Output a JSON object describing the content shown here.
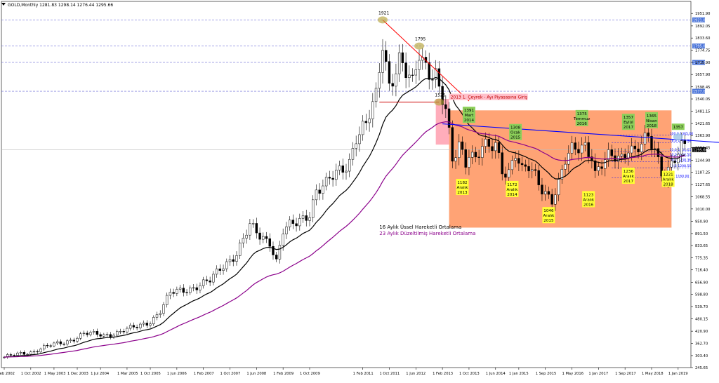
{
  "header": {
    "symbol_line": "GOLD,Monthly  1281.83 1298.14 1276.44 1295.66"
  },
  "chart_data": {
    "type": "candlestick",
    "title": "GOLD,Monthly",
    "y_min": 245.65,
    "y_max": 2010,
    "x_labels": [
      {
        "t": "1 Feb 2002",
        "i": 0
      },
      {
        "t": "1 Oct 2002",
        "i": 8
      },
      {
        "t": "1 May 2003",
        "i": 15
      },
      {
        "t": "1 Dec 2003",
        "i": 22
      },
      {
        "t": "1 Jul 2004",
        "i": 29
      },
      {
        "t": "1 Mar 2005",
        "i": 37
      },
      {
        "t": "1 Oct 2005",
        "i": 44
      },
      {
        "t": "1 Jun 2006",
        "i": 52
      },
      {
        "t": "1 Feb 2007",
        "i": 60
      },
      {
        "t": "1 Oct 2007",
        "i": 68
      },
      {
        "t": "1 Jun 2008",
        "i": 76
      },
      {
        "t": "1 Feb 2009",
        "i": 84
      },
      {
        "t": "1 Oct 2009",
        "i": 92
      },
      {
        "t": "1 Feb 2011",
        "i": 108
      },
      {
        "t": "1 Oct 2011",
        "i": 116
      },
      {
        "t": "1 Jun 2012",
        "i": 124
      },
      {
        "t": "1 Feb 2013",
        "i": 132
      },
      {
        "t": "1 Oct 2013",
        "i": 140
      },
      {
        "t": "1 Jun 2014",
        "i": 148
      },
      {
        "t": "1 Jan 2015",
        "i": 155
      },
      {
        "t": "1 Sep 2015",
        "i": 163
      },
      {
        "t": "1 May 2016",
        "i": 171
      },
      {
        "t": "1 Jan 2017",
        "i": 179
      },
      {
        "t": "1 Sep 2017",
        "i": 187
      },
      {
        "t": "1 May 2018",
        "i": 195
      },
      {
        "t": "1 Jan 2019",
        "i": 203
      }
    ],
    "y_ticks": [
      "1951.90",
      "1892.05",
      "1833.60",
      "1774.75",
      "1715.90",
      "1657.90",
      "1598.45",
      "1540.05",
      "1481.15",
      "1421.65",
      "1363.90",
      "1304.45",
      "1244.90",
      "1187.25",
      "1127.65",
      "1068.55",
      "1010.00",
      "950.90",
      "891.50",
      "833.65",
      "775.35",
      "716.40",
      "656.90",
      "598.80",
      "539.70",
      "480.15",
      "420.90",
      "362.70",
      "303.40",
      "245.65"
    ],
    "y_tick_values": [
      1951.9,
      1892.05,
      1833.6,
      1774.75,
      1715.9,
      1657.9,
      1598.45,
      1540.05,
      1481.15,
      1421.65,
      1363.9,
      1304.45,
      1244.9,
      1187.25,
      1127.65,
      1068.55,
      1010.0,
      950.9,
      891.5,
      833.65,
      775.35,
      716.4,
      656.9,
      598.8,
      539.7,
      480.15,
      420.9,
      362.7,
      303.4,
      245.65
    ],
    "resistance_levels": [
      {
        "value": 1921,
        "label": "1921.00"
      },
      {
        "value": 1795,
        "label": "1795.00"
      },
      {
        "value": 1716,
        "label": "1716.00"
      },
      {
        "value": 1577,
        "label": "1577.00"
      }
    ],
    "current_price": {
      "value": 1295.66,
      "label": "1295.66"
    },
    "key_points": [
      {
        "label": "1921",
        "date_index": 114,
        "price": 1921
      },
      {
        "label": "1795",
        "date_index": 125,
        "price": 1795
      },
      {
        "label": "1525",
        "date_index": 131,
        "price": 1525
      }
    ],
    "red_trendline": {
      "from": {
        "i": 114,
        "p": 1921
      },
      "to": {
        "i": 140,
        "p": 1530
      },
      "label": "2013 1. Çeyrek - Ayı Piyasasına Giriş"
    },
    "support_line": {
      "from_i": 113,
      "to_i": 131,
      "p": 1525
    },
    "blue_trendline": {
      "from": {
        "i": 132,
        "p": 1420
      },
      "to": {
        "i": 216,
        "p": 1330
      }
    },
    "box": {
      "from_i": 134,
      "to_i": 201,
      "top": 1485,
      "bottom": 920
    },
    "fib_levels": [
      {
        "label": "100.0 1365.00",
        "value": 1365,
        "color": "#0000ff"
      },
      {
        "label": "78.6 1329.92",
        "value": 1329.92,
        "color": "#0000ff"
      },
      {
        "label": "61.8 1286.63",
        "value": 1286.63,
        "color": "#0000ff"
      },
      {
        "label": "50.0 1262.50",
        "value": 1262.5,
        "color": "#0000ff"
      },
      {
        "label": "38.2 1238.36",
        "value": 1238.36,
        "color": "#0000ff"
      },
      {
        "label": "23.6 1208.50",
        "value": 1208.5,
        "color": "#0000ff"
      },
      {
        "label": "0.0 1160.00",
        "value": 1160,
        "color": "#0000ff"
      }
    ],
    "annotations_green": [
      {
        "text": [
          "1391",
          "Mart",
          "2014"
        ],
        "i": 140,
        "p": 1391,
        "pos": "above"
      },
      {
        "text": [
          "1308",
          "Ocak",
          "2015"
        ],
        "i": 154,
        "p": 1308,
        "pos": "above"
      },
      {
        "text": [
          "1375",
          "Temmuz",
          "2016"
        ],
        "i": 174,
        "p": 1375,
        "pos": "above"
      },
      {
        "text": [
          "1357",
          "Eylül",
          "2017"
        ],
        "i": 188,
        "p": 1357,
        "pos": "above"
      },
      {
        "text": [
          "1365",
          "Nisan",
          "2018"
        ],
        "i": 195,
        "p": 1365,
        "pos": "above"
      },
      {
        "text": [
          "1357"
        ],
        "i": 203,
        "p": 1357,
        "pos": "above"
      }
    ],
    "annotations_yellow": [
      {
        "text": [
          "1182",
          "Aralık",
          "2013"
        ],
        "i": 138,
        "p": 1182
      },
      {
        "text": [
          "1172",
          "Aralık",
          "2014"
        ],
        "i": 153,
        "p": 1172
      },
      {
        "text": [
          "1046",
          "Aralık",
          "2015"
        ],
        "i": 164,
        "p": 1046
      },
      {
        "text": [
          "1123",
          "Aralık",
          "2016"
        ],
        "i": 176,
        "p": 1123
      },
      {
        "text": [
          "1236",
          "Aralık",
          "2017"
        ],
        "i": 188,
        "p": 1236
      },
      {
        "text": [
          "1221",
          "Aralık",
          "2018"
        ],
        "i": 200,
        "p": 1221
      }
    ],
    "legend": [
      {
        "label": "16 Aylık Üssel Hareketli Ortalama",
        "color": "#000000"
      },
      {
        "label": "23 Aylık Düzeltilmiş Hareketli Ortalama",
        "color": "#8b008b"
      }
    ],
    "candle_count": 206,
    "closes_anchor": [
      [
        0,
        296
      ],
      [
        8,
        320
      ],
      [
        12,
        345
      ],
      [
        18,
        365
      ],
      [
        24,
        410
      ],
      [
        30,
        400
      ],
      [
        36,
        425
      ],
      [
        40,
        440
      ],
      [
        44,
        470
      ],
      [
        47,
        520
      ],
      [
        50,
        600
      ],
      [
        54,
        620
      ],
      [
        58,
        640
      ],
      [
        62,
        660
      ],
      [
        66,
        740
      ],
      [
        70,
        800
      ],
      [
        74,
        920
      ],
      [
        77,
        880
      ],
      [
        80,
        860
      ],
      [
        82,
        760
      ],
      [
        84,
        900
      ],
      [
        88,
        940
      ],
      [
        92,
        1000
      ],
      [
        94,
        1100
      ],
      [
        97,
        1120
      ],
      [
        100,
        1180
      ],
      [
        104,
        1250
      ],
      [
        106,
        1360
      ],
      [
        109,
        1400
      ],
      [
        112,
        1550
      ],
      [
        114,
        1830
      ],
      [
        116,
        1620
      ],
      [
        119,
        1720
      ],
      [
        121,
        1650
      ],
      [
        123,
        1600
      ],
      [
        125,
        1770
      ],
      [
        128,
        1690
      ],
      [
        130,
        1660
      ],
      [
        131,
        1580
      ],
      [
        133,
        1470
      ],
      [
        135,
        1230
      ],
      [
        137,
        1330
      ],
      [
        139,
        1250
      ],
      [
        140,
        1300
      ],
      [
        142,
        1250
      ],
      [
        144,
        1300
      ],
      [
        146,
        1290
      ],
      [
        148,
        1320
      ],
      [
        150,
        1210
      ],
      [
        152,
        1200
      ],
      [
        154,
        1280
      ],
      [
        156,
        1180
      ],
      [
        158,
        1200
      ],
      [
        160,
        1170
      ],
      [
        162,
        1120
      ],
      [
        163,
        1100
      ],
      [
        165,
        1060
      ],
      [
        167,
        1120
      ],
      [
        169,
        1230
      ],
      [
        171,
        1290
      ],
      [
        173,
        1320
      ],
      [
        175,
        1330
      ],
      [
        177,
        1270
      ],
      [
        178,
        1170
      ],
      [
        180,
        1210
      ],
      [
        182,
        1250
      ],
      [
        184,
        1270
      ],
      [
        186,
        1270
      ],
      [
        188,
        1320
      ],
      [
        190,
        1280
      ],
      [
        192,
        1310
      ],
      [
        194,
        1340
      ],
      [
        195,
        1320
      ],
      [
        196,
        1300
      ],
      [
        198,
        1200
      ],
      [
        199,
        1190
      ],
      [
        200,
        1210
      ],
      [
        202,
        1250
      ],
      [
        204,
        1290
      ],
      [
        205,
        1296
      ]
    ]
  }
}
